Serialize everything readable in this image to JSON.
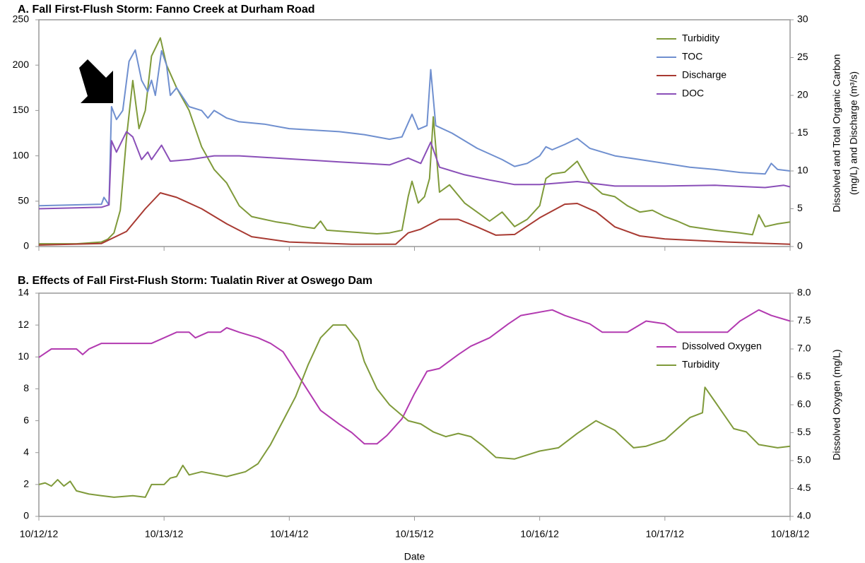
{
  "chart_data": [
    {
      "type": "line",
      "title": "A. Fall First-Flush Storm: Fanno Creek at Durham Road",
      "y2label": [
        "Dissolved and Total Organic Carbon",
        "(mg/L) and Discharge (m³/s)"
      ],
      "xlim": [
        0,
        6
      ],
      "xticks": [
        0,
        1,
        2,
        3,
        4,
        5,
        6
      ],
      "ylim": [
        0,
        250
      ],
      "yticks": [
        0,
        50,
        100,
        150,
        200,
        250
      ],
      "y2lim": [
        0,
        30
      ],
      "y2ticks": [
        0,
        5,
        10,
        15,
        20,
        25,
        30
      ],
      "legend": "upper right",
      "series": [
        {
          "name": "Turbidity",
          "color": "#7f9a3a",
          "x": [
            0,
            0.3,
            0.5,
            0.55,
            0.6,
            0.65,
            0.7,
            0.75,
            0.8,
            0.85,
            0.9,
            0.97,
            1.02,
            1.1,
            1.2,
            1.3,
            1.4,
            1.5,
            1.6,
            1.7,
            1.8,
            1.9,
            2.0,
            2.1,
            2.2,
            2.25,
            2.3,
            2.5,
            2.7,
            2.8,
            2.9,
            2.95,
            2.98,
            3.03,
            3.08,
            3.12,
            3.15,
            3.2,
            3.28,
            3.4,
            3.5,
            3.6,
            3.7,
            3.8,
            3.9,
            4.0,
            4.05,
            4.1,
            4.2,
            4.3,
            4.4,
            4.5,
            4.6,
            4.7,
            4.8,
            4.9,
            5.0,
            5.1,
            5.2,
            5.4,
            5.6,
            5.7,
            5.75,
            5.8,
            5.9,
            6.0
          ],
          "values": [
            3,
            3,
            5,
            8,
            15,
            40,
            120,
            183,
            130,
            150,
            210,
            230,
            200,
            175,
            150,
            110,
            85,
            70,
            45,
            33,
            30,
            27,
            25,
            22,
            20,
            28,
            18,
            16,
            14,
            15,
            18,
            55,
            72,
            48,
            55,
            75,
            143,
            60,
            68,
            48,
            38,
            28,
            38,
            22,
            30,
            45,
            75,
            80,
            82,
            94,
            70,
            58,
            55,
            45,
            38,
            40,
            33,
            28,
            22,
            18,
            15,
            13,
            35,
            22,
            25,
            27
          ]
        },
        {
          "name": "TOC",
          "color": "#6f8fcf",
          "axis": "y2",
          "x": [
            0,
            0.5,
            0.52,
            0.56,
            0.58,
            0.62,
            0.67,
            0.72,
            0.77,
            0.82,
            0.87,
            0.9,
            0.93,
            0.98,
            1.02,
            1.05,
            1.1,
            1.2,
            1.3,
            1.35,
            1.4,
            1.5,
            1.6,
            1.8,
            2.0,
            2.2,
            2.4,
            2.6,
            2.8,
            2.9,
            2.98,
            3.03,
            3.1,
            3.13,
            3.17,
            3.3,
            3.5,
            3.7,
            3.8,
            3.9,
            4.0,
            4.05,
            4.1,
            4.2,
            4.3,
            4.4,
            4.6,
            4.8,
            5.0,
            5.2,
            5.4,
            5.6,
            5.8,
            5.85,
            5.9,
            6.0
          ],
          "values": [
            5.4,
            5.6,
            6.5,
            5.5,
            18.5,
            16.8,
            18,
            24.5,
            26,
            22,
            20.5,
            22,
            20,
            25.9,
            24,
            20,
            21,
            18.5,
            18,
            17,
            18,
            17,
            16.5,
            16.2,
            15.6,
            15.4,
            15.2,
            14.8,
            14.2,
            14.5,
            17.5,
            15.5,
            16,
            23.4,
            16,
            15,
            13,
            11.5,
            10.6,
            11,
            12,
            13.2,
            12.8,
            13.5,
            14.3,
            13,
            12,
            11.5,
            11,
            10.5,
            10.2,
            9.8,
            9.6,
            11,
            10.2,
            10
          ]
        },
        {
          "name": "Discharge",
          "color": "#a83a32",
          "axis": "y2",
          "x": [
            0,
            0.5,
            0.7,
            0.85,
            0.97,
            1.1,
            1.3,
            1.5,
            1.7,
            2.0,
            2.5,
            2.85,
            2.95,
            3.05,
            3.2,
            3.35,
            3.5,
            3.65,
            3.8,
            4.0,
            4.2,
            4.3,
            4.45,
            4.6,
            4.8,
            5.0,
            5.5,
            6.0
          ],
          "values": [
            0.2,
            0.4,
            2,
            5,
            7.1,
            6.5,
            5,
            3,
            1.3,
            0.6,
            0.3,
            0.3,
            1.8,
            2.3,
            3.6,
            3.6,
            2.6,
            1.5,
            1.6,
            3.8,
            5.6,
            5.7,
            4.6,
            2.6,
            1.4,
            1.0,
            0.6,
            0.3
          ]
        },
        {
          "name": "DOC",
          "color": "#8a4fb8",
          "axis": "y2",
          "x": [
            0,
            0.5,
            0.56,
            0.58,
            0.62,
            0.7,
            0.75,
            0.82,
            0.87,
            0.9,
            0.98,
            1.05,
            1.2,
            1.4,
            1.6,
            1.8,
            2.0,
            2.2,
            2.4,
            2.6,
            2.8,
            2.95,
            3.05,
            3.13,
            3.2,
            3.4,
            3.6,
            3.8,
            4.0,
            4.3,
            4.6,
            5.0,
            5.4,
            5.8,
            5.95,
            6.0
          ],
          "values": [
            5,
            5.2,
            5.5,
            14,
            12.5,
            15.2,
            14.5,
            11.5,
            12.5,
            11.5,
            13.4,
            11.3,
            11.5,
            12,
            12,
            11.8,
            11.6,
            11.4,
            11.2,
            11,
            10.8,
            11.7,
            11,
            13.8,
            10.5,
            9.5,
            8.8,
            8.2,
            8.2,
            8.6,
            8,
            8,
            8.1,
            7.8,
            8.1,
            7.9
          ]
        }
      ]
    },
    {
      "type": "line",
      "title": "B. Effects of Fall First-Flush Storm: Tualatin River at Oswego Dam",
      "xlabel": "Date",
      "y2label": [
        "Dissolved Oxygen (mg/L)"
      ],
      "xlim": [
        0,
        6
      ],
      "xticks": [
        {
          "value": 0,
          "label": "10/12/12"
        },
        {
          "value": 1,
          "label": "10/13/12"
        },
        {
          "value": 2,
          "label": "10/14/12"
        },
        {
          "value": 3,
          "label": "10/15/12"
        },
        {
          "value": 4,
          "label": "10/16/12"
        },
        {
          "value": 5,
          "label": "10/17/12"
        },
        {
          "value": 6,
          "label": "10/18/12"
        }
      ],
      "ylim": [
        0,
        14
      ],
      "yticks": [
        0,
        2,
        4,
        6,
        8,
        10,
        12,
        14
      ],
      "y2lim": [
        4,
        8
      ],
      "y2ticks": [
        {
          "value": 4,
          "label": "4.0"
        },
        4.5,
        {
          "value": 5,
          "label": "5.0"
        },
        5.5,
        {
          "value": 6,
          "label": "6.0"
        },
        6.5,
        {
          "value": 7,
          "label": "7.0"
        },
        7.5,
        {
          "value": 8,
          "label": "8.0"
        }
      ],
      "legend": "center right",
      "series": [
        {
          "name": "Dissolved Oxygen",
          "color": "#b23ab0",
          "axis": "y2",
          "x": [
            0,
            0.1,
            0.3,
            0.35,
            0.4,
            0.5,
            0.9,
            1.0,
            1.1,
            1.2,
            1.25,
            1.35,
            1.45,
            1.5,
            1.6,
            1.75,
            1.85,
            1.95,
            2.05,
            2.15,
            2.25,
            2.4,
            2.5,
            2.6,
            2.7,
            2.78,
            2.9,
            3.0,
            3.1,
            3.2,
            3.35,
            3.45,
            3.6,
            3.75,
            3.85,
            4.1,
            4.2,
            4.4,
            4.5,
            4.7,
            4.85,
            5.0,
            5.1,
            5.3,
            5.5,
            5.6,
            5.75,
            5.85,
            6.0
          ],
          "values": [
            6.85,
            7.0,
            7.0,
            6.9,
            7.0,
            7.1,
            7.1,
            7.2,
            7.3,
            7.3,
            7.2,
            7.3,
            7.3,
            7.38,
            7.3,
            7.2,
            7.1,
            6.95,
            6.6,
            6.25,
            5.9,
            5.65,
            5.5,
            5.3,
            5.3,
            5.45,
            5.75,
            6.2,
            6.6,
            6.65,
            6.9,
            7.05,
            7.2,
            7.45,
            7.6,
            7.7,
            7.6,
            7.45,
            7.3,
            7.3,
            7.5,
            7.45,
            7.3,
            7.3,
            7.3,
            7.5,
            7.7,
            7.6,
            7.5
          ]
        },
        {
          "name": "Turbidity",
          "color": "#7f9a3a",
          "x": [
            0,
            0.05,
            0.1,
            0.15,
            0.2,
            0.25,
            0.3,
            0.4,
            0.5,
            0.6,
            0.75,
            0.85,
            0.9,
            1.0,
            1.05,
            1.1,
            1.15,
            1.2,
            1.3,
            1.5,
            1.65,
            1.75,
            1.85,
            1.95,
            2.05,
            2.15,
            2.25,
            2.35,
            2.45,
            2.55,
            2.6,
            2.7,
            2.8,
            2.95,
            3.05,
            3.15,
            3.25,
            3.35,
            3.45,
            3.55,
            3.65,
            3.8,
            4.0,
            4.15,
            4.3,
            4.45,
            4.6,
            4.75,
            4.85,
            5.0,
            5.1,
            5.2,
            5.3,
            5.32,
            5.4,
            5.55,
            5.65,
            5.75,
            5.9,
            6.0
          ],
          "values": [
            2,
            2.1,
            1.9,
            2.3,
            1.9,
            2.2,
            1.6,
            1.4,
            1.3,
            1.2,
            1.3,
            1.2,
            2,
            2,
            2.4,
            2.5,
            3.2,
            2.6,
            2.8,
            2.5,
            2.8,
            3.3,
            4.5,
            6,
            7.5,
            9.5,
            11.2,
            12,
            12,
            11,
            9.7,
            8,
            7,
            6,
            5.8,
            5.3,
            5,
            5.2,
            5,
            4.4,
            3.7,
            3.6,
            4.1,
            4.3,
            5.2,
            6,
            5.4,
            4.3,
            4.4,
            4.8,
            5.5,
            6.2,
            6.5,
            8.1,
            7.2,
            5.5,
            5.3,
            4.5,
            4.3,
            4.4
          ]
        }
      ]
    }
  ]
}
